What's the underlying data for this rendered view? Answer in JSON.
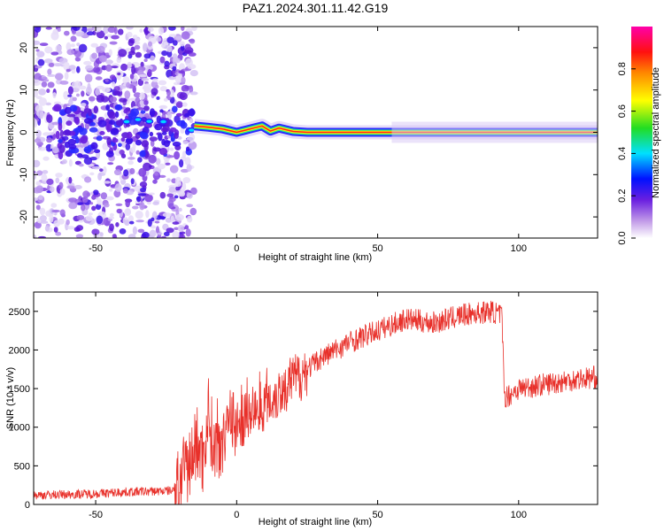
{
  "figure": {
    "title": "PAZ1.2024.301.11.42.G19"
  },
  "chart_data": [
    {
      "type": "heatmap",
      "title": "PAZ1.2024.301.11.42.G19",
      "xlabel": "Height of straight line (km)",
      "ylabel": "Frequency (Hz)",
      "xlim": [
        -72,
        128
      ],
      "ylim": [
        -25,
        25
      ],
      "xticks": [
        -50,
        0,
        50,
        100
      ],
      "yticks": [
        -20,
        -10,
        0,
        10,
        20
      ],
      "xtick_labels": [
        "-50",
        "0",
        "50",
        "100"
      ],
      "ytick_labels": [
        "-20",
        "-10",
        "0",
        "10",
        "20"
      ],
      "colorbar": {
        "label": "Normalized spectral amplitude",
        "range": [
          0,
          1
        ],
        "ticks": [
          0.0,
          0.2,
          0.4,
          0.6,
          0.8
        ],
        "tick_labels": [
          "0.0",
          "0.2",
          "0.4",
          "0.6",
          "0.8"
        ],
        "colormap": "rainbow (white-violet-blue-cyan-green-yellow-red-magenta)"
      },
      "noise_region_x": [
        -72,
        -15
      ],
      "line_trace": {
        "description": "frequency ridge position vs height",
        "x": [
          -15,
          -10,
          -5,
          0,
          3,
          6,
          9,
          12,
          15,
          20,
          25,
          128
        ],
        "y": [
          1.5,
          1.2,
          0.8,
          0.0,
          0.5,
          1.0,
          1.5,
          0.3,
          1.0,
          0.2,
          0.0,
          0.0
        ]
      },
      "grid": false
    },
    {
      "type": "line",
      "xlabel": "Height of straight line (km)",
      "ylabel": "SNR (10 * v/v)",
      "xlim": [
        -72,
        128
      ],
      "ylim": [
        0,
        2750
      ],
      "xticks": [
        -50,
        0,
        50,
        100
      ],
      "yticks": [
        0,
        500,
        1000,
        1500,
        2000,
        2500
      ],
      "xtick_labels": [
        "-50",
        "0",
        "50",
        "100"
      ],
      "ytick_labels": [
        "0",
        "500",
        "1000",
        "1500",
        "2000",
        "2500"
      ],
      "color": "#e8302a",
      "series": [
        {
          "x": [
            -72,
            -60,
            -50,
            -40,
            -30,
            -22,
            -20,
            -17,
            -14,
            -12,
            -10,
            -8,
            -5,
            -2,
            0,
            5,
            10,
            15,
            20,
            25,
            30,
            40,
            50,
            60,
            70,
            80,
            90,
            94,
            95,
            96,
            100,
            110,
            120,
            128
          ],
          "values": [
            120,
            130,
            140,
            160,
            170,
            180,
            300,
            500,
            800,
            600,
            1200,
            700,
            900,
            1200,
            1000,
            1200,
            1300,
            1450,
            1600,
            1750,
            1900,
            2100,
            2250,
            2400,
            2350,
            2450,
            2500,
            2450,
            1400,
            1400,
            1500,
            1560,
            1620,
            1650
          ]
        }
      ],
      "grid": false
    }
  ]
}
